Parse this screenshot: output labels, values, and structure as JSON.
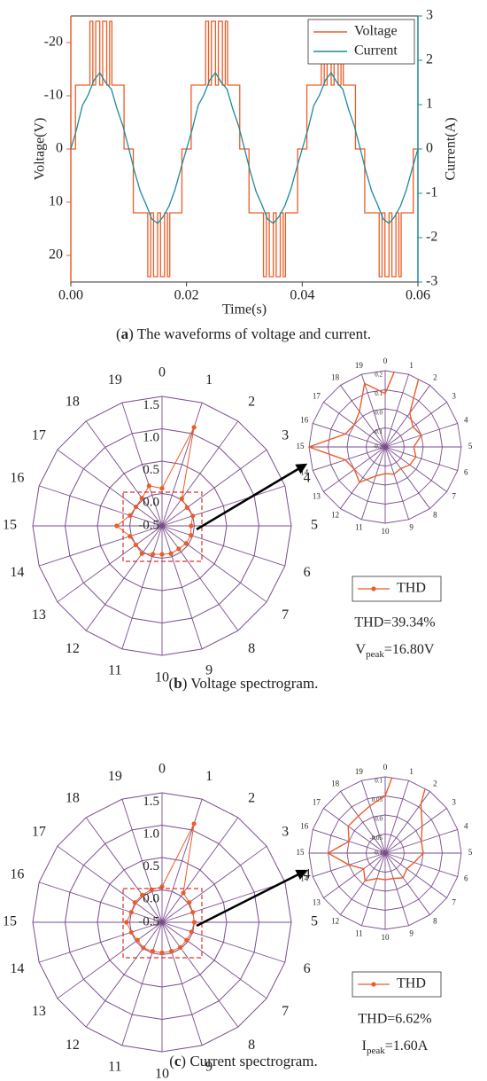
{
  "chart_data": [
    {
      "type": "line",
      "xlabel": "Time(s)",
      "ylabel": "Voltage(V)",
      "y2label": "Current(A)",
      "xlim": [
        0,
        0.06
      ],
      "xticks": [
        {
          "value": 0,
          "label": "0.00"
        },
        0.02,
        0.04,
        0.06
      ],
      "ylim": [
        25,
        -25
      ],
      "yticks": [
        -20,
        -10,
        0,
        10,
        20
      ],
      "y2lim": [
        -3,
        3
      ],
      "y2ticks": [
        -3,
        -2,
        -1,
        0,
        1,
        2,
        3
      ],
      "legend": "upper right",
      "series": [
        {
          "name": "Voltage",
          "color": "#ef5b25",
          "x": [
            0,
            0.0008,
            0.0008,
            0.0033,
            0.0033,
            0.0038,
            0.0038,
            0.0043,
            0.0043,
            0.005,
            0.005,
            0.0055,
            0.0055,
            0.0062,
            0.0062,
            0.0067,
            0.0067,
            0.0071,
            0.0071,
            0.0092,
            0.0092,
            0.0108,
            0.0108,
            0.0133,
            0.0133,
            0.0138,
            0.0138,
            0.0143,
            0.0143,
            0.015,
            0.015,
            0.0155,
            0.0155,
            0.0162,
            0.0162,
            0.0167,
            0.0167,
            0.0171,
            0.0171,
            0.0192,
            0.0192,
            0.02,
            0.0208,
            0.0208,
            0.0233,
            0.0233,
            0.0238,
            0.0238,
            0.0243,
            0.0243,
            0.025,
            0.025,
            0.0255,
            0.0255,
            0.0262,
            0.0262,
            0.0267,
            0.0267,
            0.0271,
            0.0271,
            0.0292,
            0.0292,
            0.0308,
            0.0308,
            0.0333,
            0.0333,
            0.0338,
            0.0338,
            0.0343,
            0.0343,
            0.035,
            0.035,
            0.0355,
            0.0355,
            0.0362,
            0.0362,
            0.0367,
            0.0367,
            0.0371,
            0.0371,
            0.0392,
            0.0392,
            0.04,
            0.0408,
            0.0408,
            0.0433,
            0.0433,
            0.0438,
            0.0438,
            0.0443,
            0.0443,
            0.045,
            0.045,
            0.0455,
            0.0455,
            0.0462,
            0.0462,
            0.0467,
            0.0467,
            0.0471,
            0.0471,
            0.0492,
            0.0492,
            0.0508,
            0.0508,
            0.0533,
            0.0533,
            0.0538,
            0.0538,
            0.0543,
            0.0543,
            0.055,
            0.055,
            0.0555,
            0.0555,
            0.0562,
            0.0562,
            0.0567,
            0.0567,
            0.0571,
            0.0571,
            0.0592,
            0.0592,
            0.06
          ],
          "values": [
            0,
            0,
            -12,
            -12,
            -24,
            -24,
            -12,
            -12,
            -24,
            -24,
            -12,
            -12,
            -24,
            -24,
            -12,
            -12,
            -24,
            -24,
            -12,
            -12,
            0,
            0,
            12,
            12,
            24,
            24,
            12,
            12,
            24,
            24,
            12,
            12,
            24,
            24,
            12,
            12,
            24,
            24,
            12,
            12,
            0,
            0,
            0,
            -12,
            -12,
            -24,
            -24,
            -12,
            -12,
            -24,
            -24,
            -12,
            -12,
            -24,
            -24,
            -12,
            -12,
            -24,
            -24,
            -12,
            -12,
            0,
            0,
            12,
            12,
            24,
            24,
            12,
            12,
            24,
            24,
            12,
            12,
            24,
            24,
            12,
            12,
            24,
            24,
            12,
            12,
            0,
            0,
            0,
            -12,
            -12,
            -24,
            -24,
            -12,
            -12,
            -24,
            -24,
            -12,
            -12,
            -24,
            -24,
            -12,
            -12,
            -24,
            -24,
            -12,
            -12,
            0,
            0,
            12,
            12,
            24,
            24,
            12,
            12,
            24,
            24,
            12,
            12,
            24,
            24,
            12,
            12,
            24,
            24,
            12,
            12,
            0,
            0
          ]
        },
        {
          "name": "Current",
          "color": "#1b8a9c",
          "axis": "y2",
          "x": [
            0,
            0.001,
            0.002,
            0.003,
            0.004,
            0.005,
            0.006,
            0.007,
            0.008,
            0.009,
            0.01,
            0.011,
            0.012,
            0.013,
            0.014,
            0.015,
            0.016,
            0.017,
            0.018,
            0.019,
            0.02,
            0.021,
            0.022,
            0.023,
            0.024,
            0.025,
            0.026,
            0.027,
            0.028,
            0.029,
            0.03,
            0.031,
            0.032,
            0.033,
            0.034,
            0.035,
            0.036,
            0.037,
            0.038,
            0.039,
            0.04,
            0.041,
            0.042,
            0.043,
            0.044,
            0.045,
            0.046,
            0.047,
            0.048,
            0.049,
            0.05,
            0.051,
            0.052,
            0.053,
            0.054,
            0.055,
            0.056,
            0.057,
            0.058,
            0.059,
            0.06
          ],
          "values": [
            0,
            0.45,
            0.98,
            1.22,
            1.55,
            1.72,
            1.5,
            1.35,
            0.9,
            0.52,
            0.02,
            -0.5,
            -0.95,
            -1.25,
            -1.58,
            -1.68,
            -1.52,
            -1.28,
            -0.92,
            -0.45,
            0,
            0.45,
            0.98,
            1.22,
            1.55,
            1.72,
            1.5,
            1.35,
            0.9,
            0.52,
            0.02,
            -0.5,
            -0.95,
            -1.25,
            -1.58,
            -1.68,
            -1.52,
            -1.28,
            -0.92,
            -0.45,
            0,
            0.45,
            0.98,
            1.22,
            1.55,
            1.72,
            1.5,
            1.35,
            0.9,
            0.52,
            0.02,
            -0.5,
            -0.95,
            -1.25,
            -1.58,
            -1.68,
            -1.52,
            -1.28,
            -0.92,
            -0.45,
            0
          ]
        }
      ],
      "caption": {
        "prefix": "(",
        "label": "a",
        "text": ") The waveforms of voltage and current."
      }
    },
    {
      "type": "radar",
      "categories": [
        "0",
        "1",
        "2",
        "3",
        "4",
        "5",
        "6",
        "7",
        "8",
        "9",
        "10",
        "11",
        "12",
        "13",
        "14",
        "15",
        "16",
        "17",
        "18",
        "19"
      ],
      "rlim": [
        -0.5,
        1.5
      ],
      "rticks": [
        -0.5,
        {
          "value": 0,
          "label": "0.0"
        },
        0.5,
        {
          "value": 1,
          "label": "1.0"
        },
        1.5
      ],
      "inset": {
        "rlim": [
          -0.2,
          0.2
        ],
        "rticks": [
          -0.2,
          -0.1,
          {
            "value": 0,
            "label": "0.0"
          },
          0.1,
          0.2
        ]
      },
      "series": [
        {
          "name": "THD",
          "color": "#ef5b25",
          "values": [
            0.08,
            1.1,
            0.02,
            -0.02,
            0.0,
            -0.05,
            -0.03,
            -0.04,
            -0.06,
            -0.05,
            -0.06,
            -0.04,
            0.03,
            0.0,
            0.02,
            0.2,
            0.02,
            0.0,
            0.03,
            0.15
          ]
        }
      ],
      "annotation": "THD=39.34%",
      "peak_label": {
        "symbol": "V",
        "subscript": "peak",
        "text": "=16.80V"
      },
      "caption": {
        "prefix": "(",
        "label": "b",
        "text": ") Voltage spectrogram."
      }
    },
    {
      "type": "radar",
      "categories": [
        "0",
        "1",
        "2",
        "3",
        "4",
        "5",
        "6",
        "7",
        "8",
        "9",
        "10",
        "11",
        "12",
        "13",
        "14",
        "15",
        "16",
        "17",
        "18",
        "19"
      ],
      "rlim": [
        -0.5,
        1.5
      ],
      "rticks": [
        -0.5,
        {
          "value": 0,
          "label": "0.0"
        },
        0.5,
        {
          "value": 1,
          "label": "1.0"
        },
        1.5
      ],
      "inset": {
        "rlim": [
          -0.1,
          0.1
        ],
        "rticks": [
          -0.1,
          -0.05,
          {
            "value": 0,
            "label": "0.0"
          },
          0.05,
          0.1
        ]
      },
      "series": [
        {
          "name": "THD",
          "color": "#ef5b25",
          "values": [
            0.05,
            1.1,
            0.06,
            0.02,
            0.0,
            0.0,
            -0.02,
            -0.03,
            -0.02,
            -0.03,
            -0.03,
            -0.03,
            -0.01,
            -0.03,
            0.0,
            0.05,
            0.0,
            0.02,
            0.02,
            0.03
          ]
        }
      ],
      "annotation": "THD=6.62%",
      "peak_label": {
        "symbol": "I",
        "subscript": "peak",
        "text": "=1.60A"
      },
      "caption": {
        "prefix": "(",
        "label": "c",
        "text": ") Current spectrogram."
      }
    }
  ]
}
